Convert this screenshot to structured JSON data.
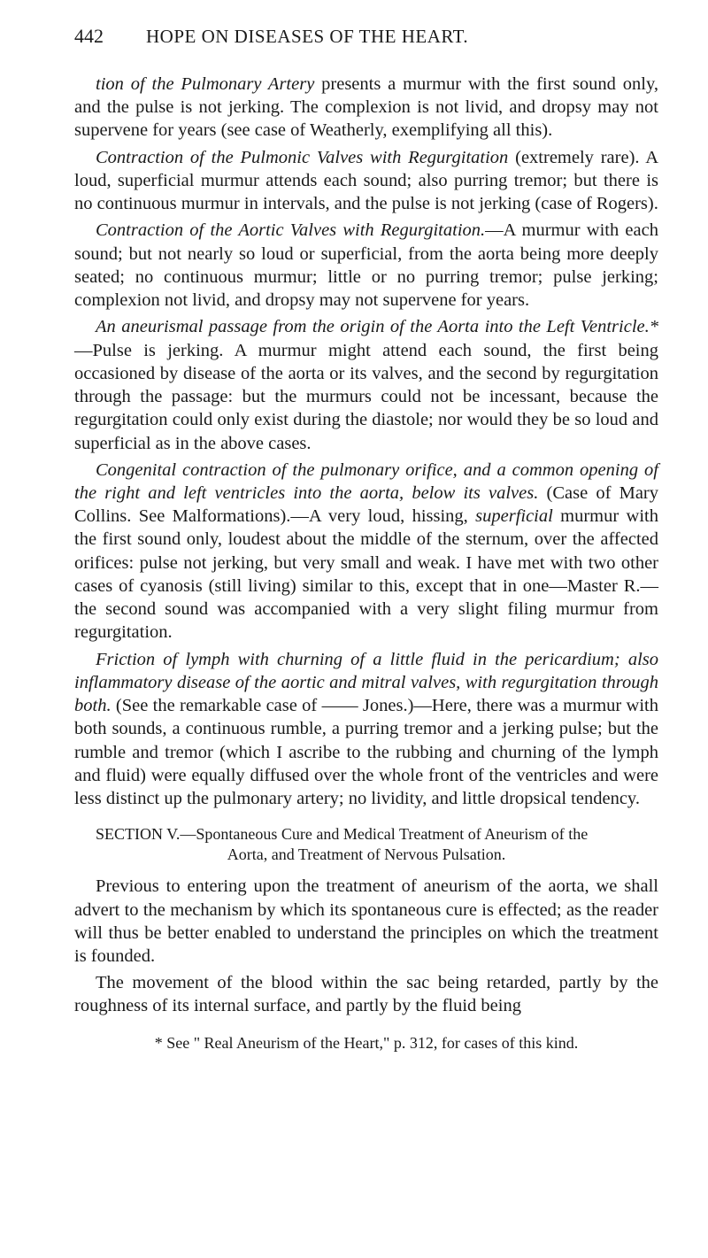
{
  "page": {
    "number": "442",
    "running_title": "HOPE ON DISEASES OF THE HEART."
  },
  "paragraphs": {
    "p1a": "tion of the Pulmonary Artery",
    "p1b": " presents a murmur with the first sound only, and the pulse is not jerking. The complexion is not livid, and dropsy may not supervene for years (see case of Weatherly, exemplifying all this).",
    "p2a": "Contraction of the Pulmonic Valves with Regurgitation",
    "p2b": " (extremely rare). A loud, superficial murmur attends each sound; also purring tremor; but there is no continuous murmur in intervals, and the pulse is not jerking (case of Rogers).",
    "p3a": "Contraction of the Aortic Valves with Regurgitation.",
    "p3b": "—A murmur with each sound; but not nearly so loud or superficial, from the aorta being more deeply seated; no continuous murmur; little or no purring tremor; pulse jerking; complexion not livid, and dropsy may not supervene for years.",
    "p4a": "An aneurismal passage from the origin of the Aorta into the Left Ventricle.*",
    "p4b": "—Pulse is jerking. A murmur might attend each sound, the first being occasioned by disease of the aorta or its valves, and the second by regurgitation through the passage: but the murmurs could not be incessant, because the regurgitation could only exist during the diastole; nor would they be so loud and superficial as in the above cases.",
    "p5a": "Congenital contraction of the pulmonary orifice, and a common opening of the right and left ventricles into the aorta, below its valves.",
    "p5b": " (Case of Mary Collins. See Malformations).—A very loud, hissing, ",
    "p5c": "superficial",
    "p5d": " murmur with the first sound only, loudest about the middle of the sternum, over the affected orifices: pulse not jerking, but very small and weak. I have met with two other cases of cyanosis (still living) similar to this, except that in one—Master R.—the second sound was accompanied with a very slight filing murmur from regurgitation.",
    "p6a": "Friction of lymph with churning of a little fluid in the pericardium; also inflammatory disease of the aortic and mitral valves, with regurgitation through both.",
    "p6b": " (See the remarkable case of —— Jones.)—Here, there was a murmur with both sounds, a continuous rumble, a purring tremor and a jerking pulse; but the rumble and tremor (which I ascribe to the rubbing and churning of the lymph and fluid) were equally diffused over the whole front of the ventricles and were less distinct up the pulmonary artery; no lividity, and little dropsical tendency."
  },
  "section": {
    "line1": "SECTION V.—Spontaneous Cure and Medical Treatment of Aneurism of the",
    "line2": "Aorta, and Treatment of Nervous Pulsation."
  },
  "after_section": {
    "p7": "Previous to entering upon the treatment of aneurism of the aorta, we shall advert to the mechanism by which its spontaneous cure is effected; as the reader will thus be better enabled to understand the principles on which the treatment is founded.",
    "p8": "The movement of the blood within the sac being retarded, partly by the roughness of its internal surface, and partly by the fluid being"
  },
  "footnote": "* See \" Real Aneurism of the Heart,\" p. 312, for cases of this kind."
}
